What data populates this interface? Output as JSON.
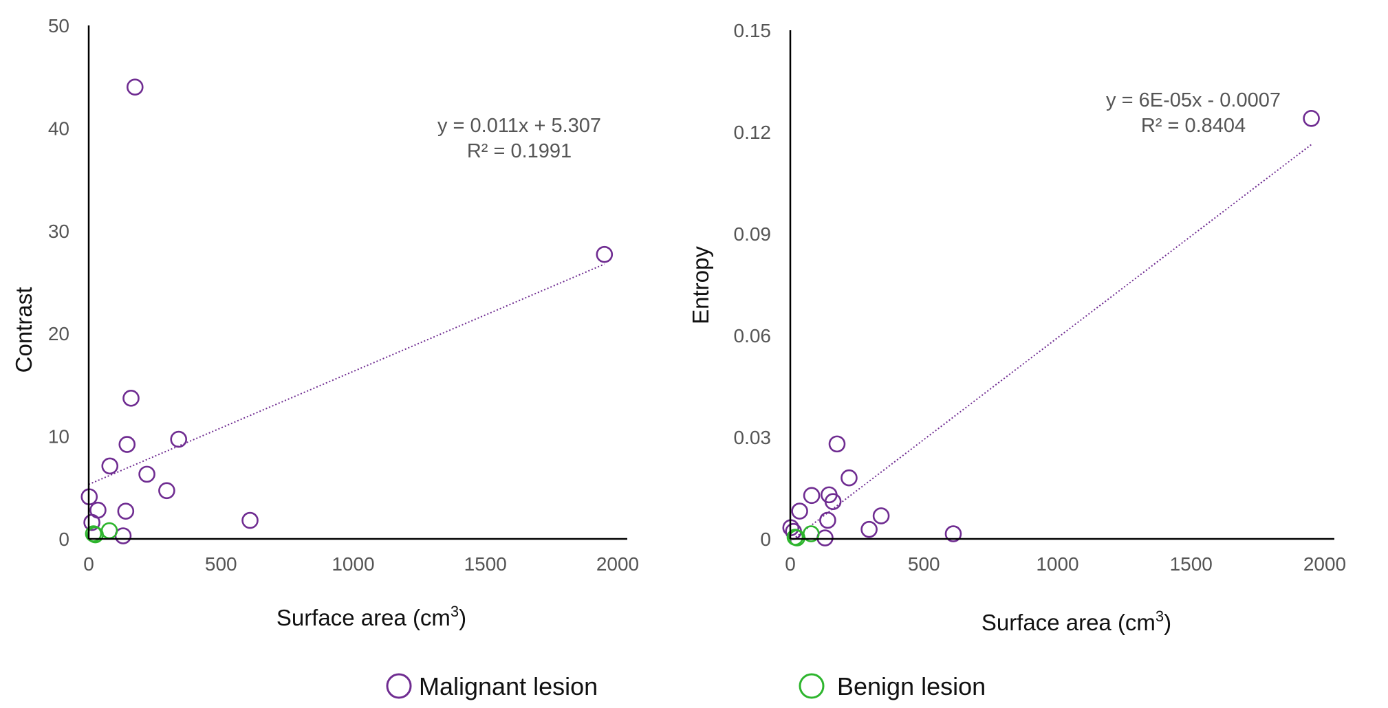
{
  "chart_data": [
    {
      "type": "scatter",
      "xlabel": "Surface area (cm",
      "xlabel_sup": "3",
      "xlabel_close": ")",
      "ylabel": "Contrast",
      "xlim": [
        0,
        2000
      ],
      "ylim": [
        0,
        50
      ],
      "xticks": [
        0,
        500,
        1000,
        1500,
        2000
      ],
      "xtick_labels": [
        "0",
        "500",
        "1000",
        "1500",
        "2000"
      ],
      "yticks": [
        0,
        10,
        20,
        30,
        40,
        50
      ],
      "ytick_labels": [
        "0",
        "10",
        "20",
        "30",
        "40",
        "50"
      ],
      "grid": false,
      "series": [
        {
          "name": "Malignant lesion",
          "color": "#6f2c91",
          "points": [
            [
              2,
              4.1
            ],
            [
              12,
              1.6
            ],
            [
              35,
              2.8
            ],
            [
              80,
              7.1
            ],
            [
              130,
              0.3
            ],
            [
              140,
              2.7
            ],
            [
              145,
              9.2
            ],
            [
              160,
              13.7
            ],
            [
              175,
              44
            ],
            [
              220,
              6.3
            ],
            [
              295,
              4.7
            ],
            [
              340,
              9.7
            ],
            [
              610,
              1.8
            ],
            [
              1950,
              27.7
            ]
          ]
        },
        {
          "name": "Benign lesion",
          "color": "#2db52d",
          "points": [
            [
              18,
              0.5
            ],
            [
              25,
              0.4
            ],
            [
              78,
              0.8
            ]
          ]
        }
      ],
      "trendline": {
        "slope": 0.011,
        "intercept": 5.307,
        "x_range": [
          0,
          1950
        ],
        "equation": "y = 0.011x + 5.307",
        "r2": "R² = 0.1991",
        "color": "#6f2c91"
      }
    },
    {
      "type": "scatter",
      "xlabel": "Surface area (cm",
      "xlabel_sup": "3",
      "xlabel_close": ")",
      "ylabel": "Entropy",
      "xlim": [
        0,
        2000
      ],
      "ylim": [
        0,
        0.15
      ],
      "xticks": [
        0,
        500,
        1000,
        1500,
        2000
      ],
      "xtick_labels": [
        "0",
        "500",
        "1000",
        "1500",
        "2000"
      ],
      "yticks": [
        0,
        0.03,
        0.06,
        0.09,
        0.12,
        0.15
      ],
      "ytick_labels": [
        "0",
        "0.03",
        "0.06",
        "0.09",
        "0.12",
        "0.15"
      ],
      "grid": false,
      "series": [
        {
          "name": "Malignant lesion",
          "color": "#6f2c91",
          "points": [
            [
              2,
              0.0033
            ],
            [
              12,
              0.0022
            ],
            [
              35,
              0.0082
            ],
            [
              80,
              0.0128
            ],
            [
              130,
              0.0003
            ],
            [
              140,
              0.0055
            ],
            [
              145,
              0.013
            ],
            [
              160,
              0.011
            ],
            [
              175,
              0.028
            ],
            [
              220,
              0.018
            ],
            [
              295,
              0.0028
            ],
            [
              340,
              0.0068
            ],
            [
              610,
              0.0015
            ],
            [
              1950,
              0.124
            ]
          ]
        },
        {
          "name": "Benign lesion",
          "color": "#2db52d",
          "points": [
            [
              18,
              0.0005
            ],
            [
              25,
              0.0003
            ],
            [
              78,
              0.0015
            ]
          ]
        }
      ],
      "trendline": {
        "slope": 6e-05,
        "intercept": -0.0007,
        "x_range": [
          0,
          1950
        ],
        "equation": "y = 6E-05x - 0.0007",
        "r2": "R² = 0.8404",
        "color": "#6f2c91"
      }
    }
  ],
  "legend": [
    {
      "label": "Malignant lesion",
      "color": "#6f2c91"
    },
    {
      "label": "Benign lesion",
      "color": "#2db52d"
    }
  ]
}
